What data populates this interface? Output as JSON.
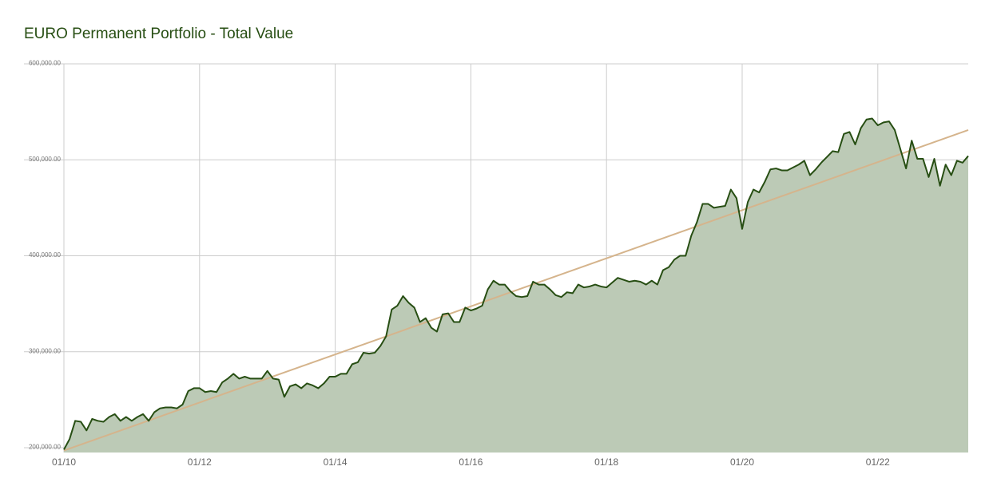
{
  "chart_data": {
    "type": "area",
    "title": "EURO Permanent Portfolio - Total Value",
    "categories": [
      "01/10",
      null,
      null,
      null,
      null,
      null,
      null,
      null,
      null,
      null,
      null,
      null,
      null,
      null,
      null,
      null,
      null,
      null,
      null,
      null,
      null,
      null,
      null,
      null,
      "01/12",
      null,
      null,
      null,
      null,
      null,
      null,
      null,
      null,
      null,
      null,
      null,
      null,
      null,
      null,
      null,
      null,
      null,
      null,
      null,
      null,
      null,
      null,
      null,
      "01/14",
      null,
      null,
      null,
      null,
      null,
      null,
      null,
      null,
      null,
      null,
      null,
      null,
      null,
      null,
      null,
      null,
      null,
      null,
      null,
      null,
      null,
      null,
      null,
      "01/16",
      null,
      null,
      null,
      null,
      null,
      null,
      null,
      null,
      null,
      null,
      null,
      null,
      null,
      null,
      null,
      null,
      null,
      null,
      null,
      null,
      null,
      null,
      null,
      "01/18",
      null,
      null,
      null,
      null,
      null,
      null,
      null,
      null,
      null,
      null,
      null,
      null,
      null,
      null,
      null,
      null,
      null,
      null,
      null,
      null,
      null,
      null,
      null,
      "01/20",
      null,
      null,
      null,
      null,
      null,
      null,
      null,
      null,
      null,
      null,
      null,
      null,
      null,
      null,
      null,
      null,
      null,
      null,
      null,
      null,
      null,
      null,
      null,
      "01/22",
      null,
      null,
      null,
      null,
      null,
      null,
      null,
      null,
      null,
      null,
      null,
      null,
      null,
      null,
      null,
      null
    ],
    "values": [
      198000,
      209000,
      228000,
      227000,
      218000,
      230000,
      228000,
      227000,
      232000,
      235000,
      228000,
      232000,
      228000,
      232000,
      235000,
      228000,
      237000,
      241000,
      242000,
      242000,
      241000,
      245000,
      259000,
      262000,
      262000,
      258000,
      259000,
      258000,
      268000,
      272000,
      277000,
      272000,
      274000,
      272000,
      272000,
      272000,
      280000,
      272000,
      271000,
      253000,
      264000,
      266000,
      262000,
      267000,
      265000,
      262000,
      267000,
      274000,
      274000,
      277000,
      277000,
      287000,
      289000,
      299000,
      298000,
      299000,
      306000,
      316000,
      344000,
      348000,
      358000,
      351000,
      346000,
      331000,
      335000,
      325000,
      321000,
      339000,
      340000,
      331000,
      331000,
      346000,
      343000,
      345000,
      348000,
      365000,
      374000,
      370000,
      370000,
      363000,
      358000,
      357000,
      358000,
      373000,
      370000,
      370000,
      365000,
      359000,
      357000,
      362000,
      361000,
      370000,
      367000,
      368000,
      370000,
      368000,
      367000,
      372000,
      377000,
      375000,
      373000,
      374000,
      373000,
      370000,
      374000,
      370000,
      385000,
      388000,
      396000,
      400000,
      400000,
      421000,
      435000,
      454000,
      454000,
      450000,
      451000,
      452000,
      469000,
      460000,
      428000,
      456000,
      469000,
      466000,
      477000,
      490000,
      491000,
      489000,
      489000,
      492000,
      495000,
      499000,
      484000,
      490000,
      497000,
      503000,
      509000,
      508000,
      527000,
      529000,
      516000,
      533000,
      542000,
      543000,
      536000,
      539000,
      540000,
      531000,
      511000,
      491000,
      520000,
      501000,
      501000,
      482000,
      501000,
      473000,
      495000,
      484000,
      499000,
      497000,
      504000
    ],
    "color": "#274e13",
    "fill": "#bccab6",
    "trendline": {
      "color": "#d5b48c",
      "values": [
        197000,
        531000
      ]
    },
    "ylim": [
      195000,
      600000
    ],
    "yticks": [
      {
        "value": 200000,
        "label": "200,000.00"
      },
      {
        "value": 300000,
        "label": "300,000.00"
      },
      {
        "value": 400000,
        "label": "400,000.00"
      },
      {
        "value": 500000,
        "label": "500,000.00"
      },
      {
        "value": 600000,
        "label": "600,000.00"
      }
    ],
    "grid": true
  }
}
